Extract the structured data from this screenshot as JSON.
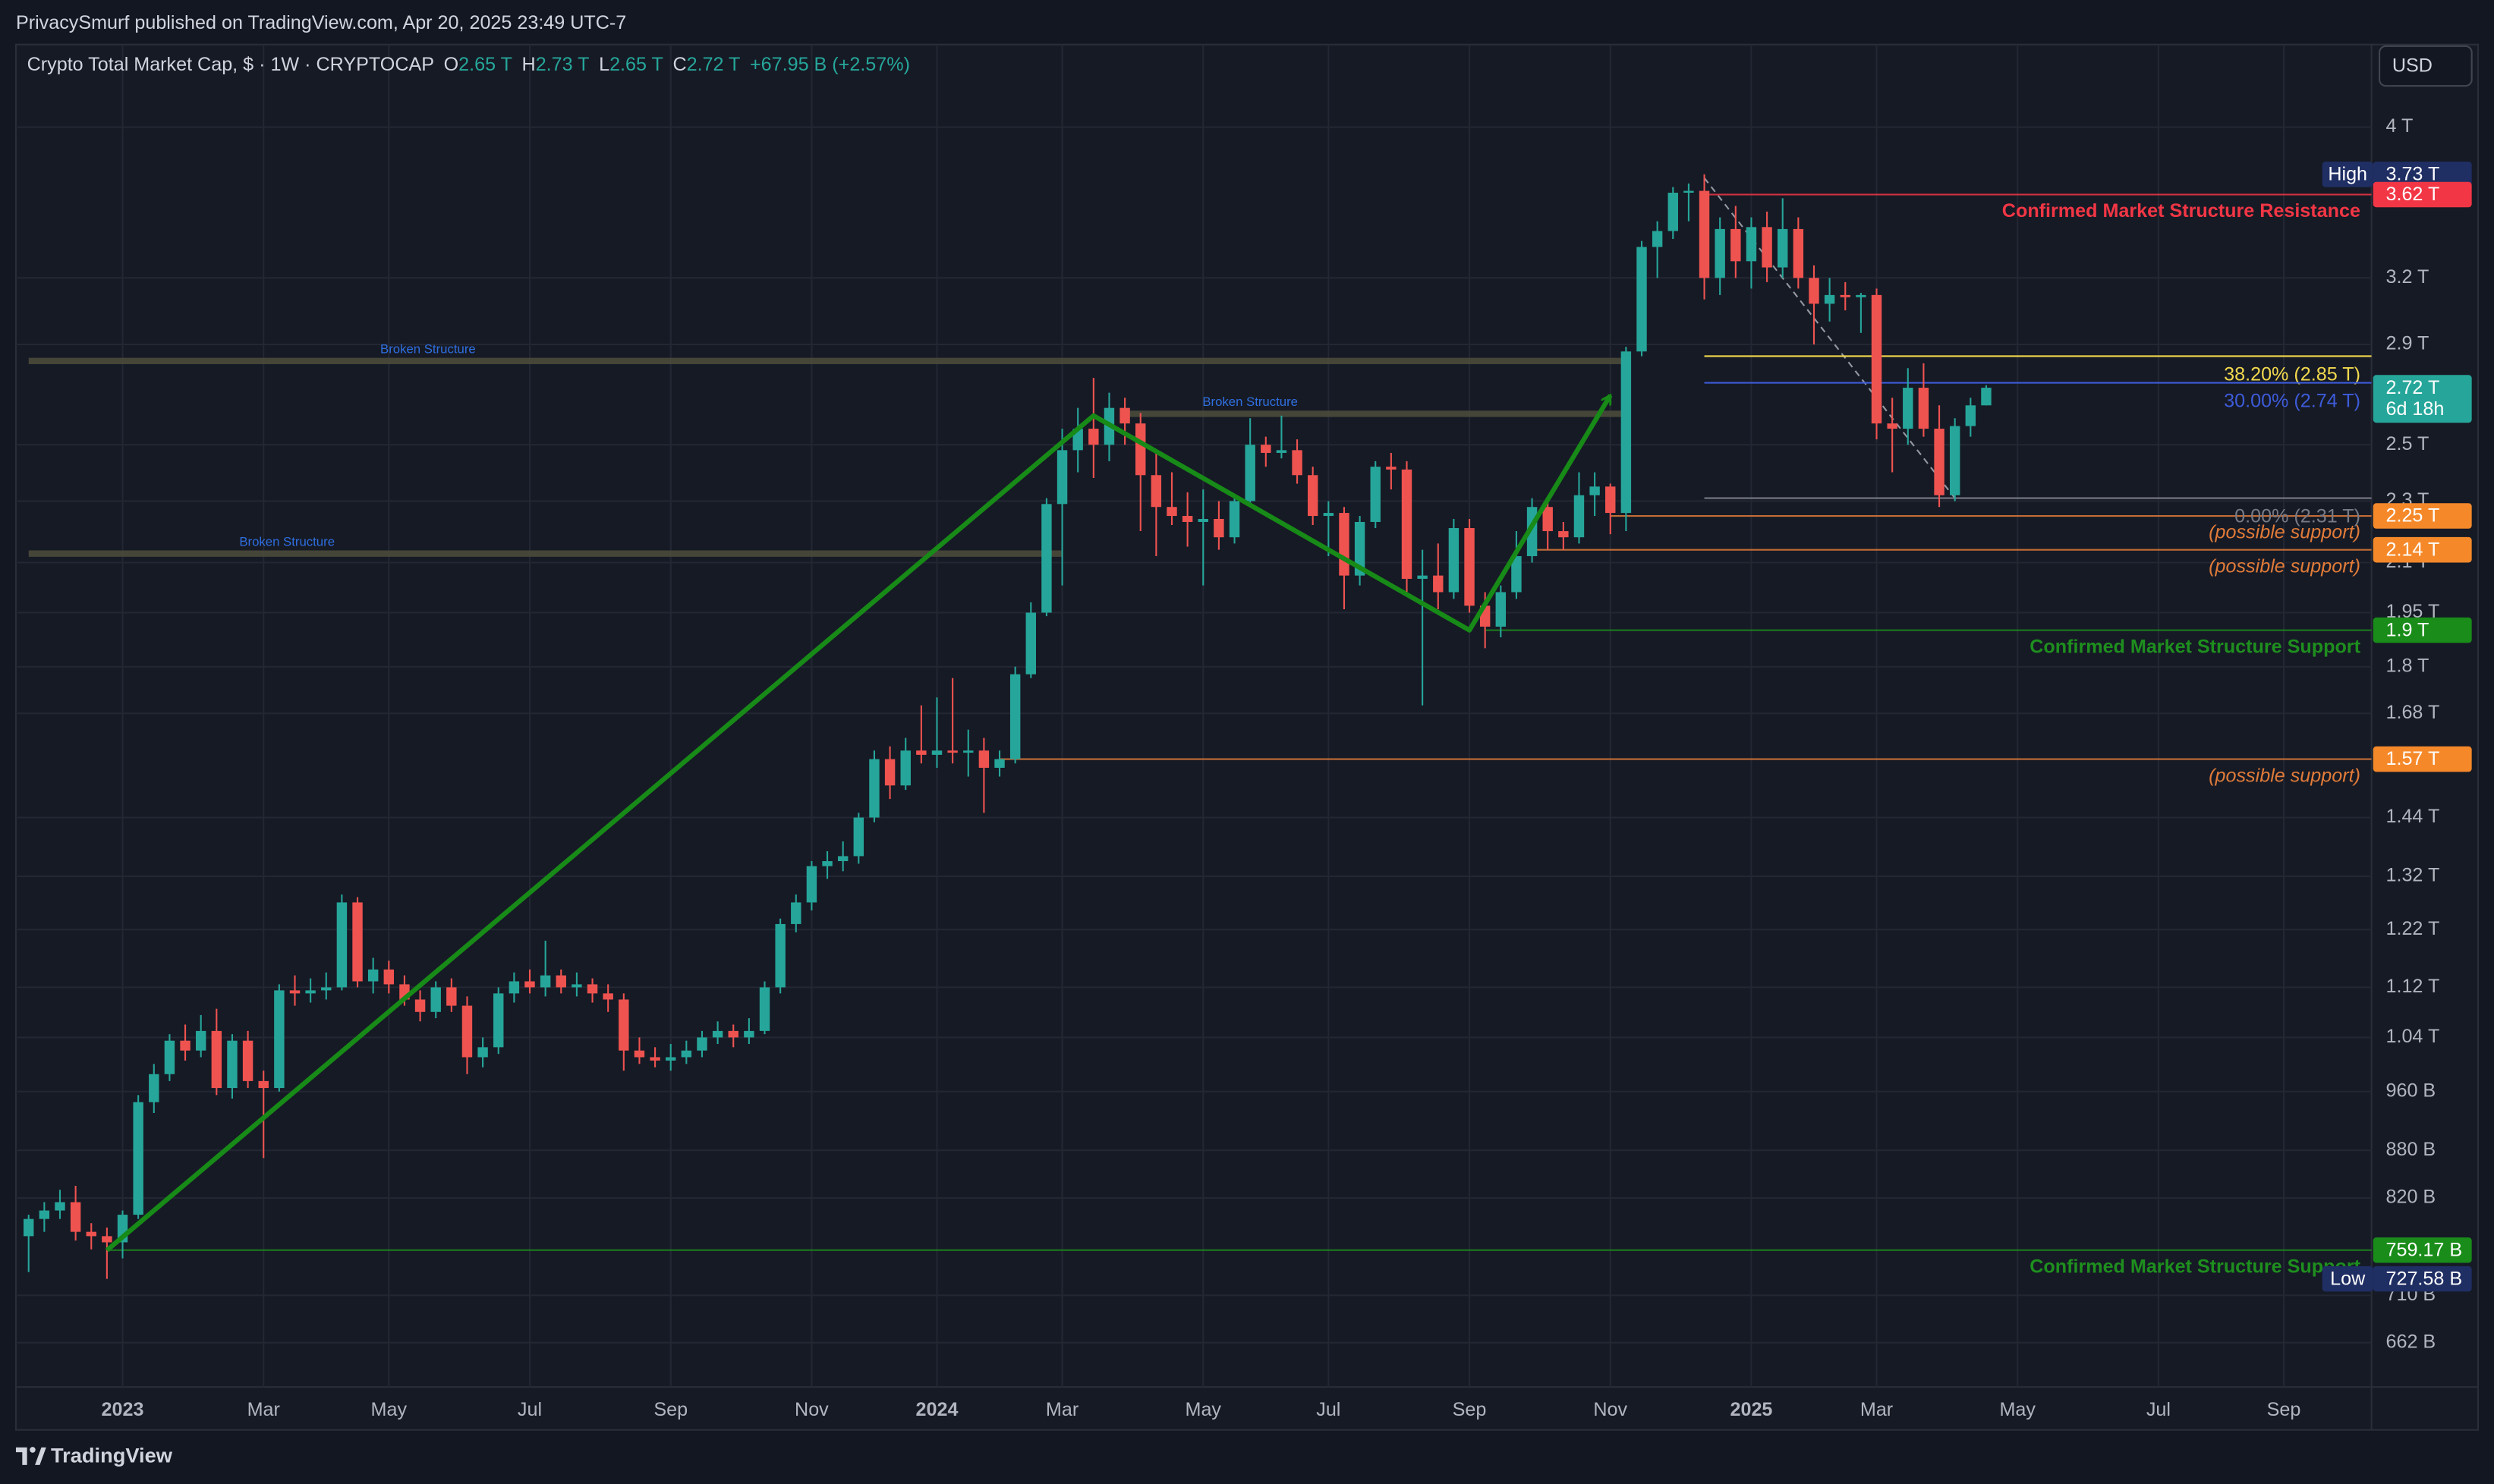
{
  "header": "PrivacySmurf published on TradingView.com, Apr 20, 2025 23:49 UTC-7",
  "footer": "TradingView",
  "currency_button": "USD",
  "chart_data": {
    "type": "candlestick",
    "title": "Crypto Total Market Cap, $ · 1W · CRYPTOCAP",
    "ohlc_legend": [
      {
        "key": "O",
        "value": 2650,
        "label": "2.65 T"
      },
      {
        "key": "H",
        "value": 2730,
        "label": "2.73 T"
      },
      {
        "key": "L",
        "value": 2650,
        "label": "2.65 T"
      },
      {
        "key": "C",
        "value": 2720,
        "label": "2.72 T"
      }
    ],
    "change": {
      "value": 67.95,
      "label": "+67.95 B (+2.57%)"
    },
    "categories": [
      null,
      null,
      null,
      null,
      null,
      null,
      "2023",
      null,
      null,
      null,
      null,
      null,
      null,
      null,
      null,
      "Mar",
      null,
      null,
      null,
      null,
      null,
      null,
      null,
      "May",
      null,
      null,
      null,
      null,
      null,
      null,
      null,
      null,
      "Jul",
      null,
      null,
      null,
      null,
      null,
      null,
      null,
      null,
      "Sep",
      null,
      null,
      null,
      null,
      null,
      null,
      null,
      null,
      "Nov",
      null,
      null,
      null,
      null,
      null,
      null,
      null,
      "2024",
      null,
      null,
      null,
      null,
      null,
      null,
      null,
      "Mar",
      null,
      null,
      null,
      null,
      null,
      null,
      null,
      null,
      "May",
      null,
      null,
      null,
      null,
      null,
      null,
      null,
      "Jul",
      null,
      null,
      null,
      null,
      null,
      null,
      null,
      null,
      "Sep",
      null,
      null,
      null,
      null,
      null,
      null,
      null,
      null,
      "Nov",
      null,
      null,
      null,
      null,
      null,
      null,
      null,
      null,
      "2025",
      null,
      null,
      null,
      null,
      null,
      null,
      null,
      "Mar",
      null,
      null,
      null,
      null,
      null,
      null,
      null,
      null,
      "May",
      null,
      null,
      null,
      null,
      null,
      null,
      null,
      null,
      "Jul",
      null,
      null,
      null,
      null,
      null,
      null,
      null,
      "Sep",
      null,
      null,
      null,
      null,
      null
    ],
    "open": [
      775,
      795,
      805,
      815,
      780,
      775,
      768,
      800,
      945,
      985,
      1035,
      1020,
      1050,
      965,
      1035,
      975,
      965,
      1115,
      1110,
      1115,
      1120,
      1270,
      1130,
      1150,
      1125,
      1100,
      1080,
      1120,
      1090,
      1010,
      1025,
      1110,
      1130,
      1120,
      1140,
      1120,
      1125,
      1110,
      1100,
      1020,
      1010,
      1005,
      1010,
      1020,
      1040,
      1050,
      1040,
      1050,
      1120,
      1230,
      1270,
      1340,
      1350,
      1360,
      1440,
      1570,
      1510,
      1590,
      1580,
      1590,
      1585,
      1590,
      1550,
      1570,
      1780,
      1950,
      2290,
      2480,
      2560,
      2500,
      2640,
      2580,
      2390,
      2280,
      2250,
      2230,
      2240,
      2180,
      2300,
      2500,
      2470,
      2480,
      2390,
      2250,
      2260,
      2060,
      2230,
      2420,
      2410,
      2050,
      2060,
      2010,
      2210,
      1970,
      1910,
      2010,
      2120,
      2280,
      2200,
      2180,
      2320,
      2350,
      2260,
      2870,
      3350,
      3430,
      3630,
      3640,
      3200,
      3440,
      3280,
      3450,
      3250,
      3440,
      3200,
      3080,
      3120,
      3110,
      3120,
      2580,
      2560,
      2720,
      2560,
      2320,
      2570,
      2650,
      null,
      null,
      null,
      null,
      null,
      null,
      null,
      null,
      null,
      null,
      null,
      null,
      null,
      null,
      null,
      null,
      null,
      null,
      null,
      null,
      null,
      null,
      null,
      null
    ],
    "high": [
      800,
      815,
      830,
      835,
      790,
      785,
      805,
      955,
      1000,
      1045,
      1060,
      1075,
      1085,
      1045,
      1050,
      990,
      1125,
      1140,
      1135,
      1145,
      1285,
      1280,
      1170,
      1165,
      1140,
      1115,
      1130,
      1135,
      1105,
      1040,
      1120,
      1145,
      1150,
      1200,
      1150,
      1145,
      1135,
      1125,
      1110,
      1040,
      1025,
      1030,
      1035,
      1050,
      1065,
      1060,
      1070,
      1130,
      1240,
      1285,
      1350,
      1370,
      1390,
      1450,
      1590,
      1600,
      1620,
      1700,
      1720,
      1770,
      1640,
      1620,
      1590,
      1800,
      1980,
      2310,
      2560,
      2640,
      2760,
      2700,
      2680,
      2620,
      2480,
      2400,
      2330,
      2340,
      2300,
      2320,
      2600,
      2530,
      2610,
      2520,
      2420,
      2300,
      2280,
      2250,
      2440,
      2470,
      2440,
      2140,
      2160,
      2240,
      2240,
      2010,
      2030,
      2200,
      2310,
      2300,
      2230,
      2400,
      2400,
      2360,
      2890,
      3380,
      3480,
      3660,
      3680,
      3730,
      3500,
      3560,
      3500,
      3530,
      3600,
      3500,
      3260,
      3200,
      3180,
      3130,
      3150,
      2680,
      2800,
      2820,
      2650,
      2600,
      2680,
      2730,
      null,
      null,
      null,
      null,
      null,
      null,
      null,
      null,
      null,
      null,
      null,
      null,
      null,
      null,
      null,
      null,
      null,
      null,
      null,
      null,
      null,
      null,
      null,
      null
    ],
    "low": [
      735,
      780,
      795,
      770,
      760,
      727.58,
      750,
      795,
      930,
      975,
      1005,
      1010,
      955,
      950,
      965,
      870,
      960,
      1090,
      1095,
      1100,
      1115,
      1120,
      1110,
      1110,
      1090,
      1065,
      1070,
      1080,
      985,
      995,
      1015,
      1095,
      1110,
      1105,
      1110,
      1105,
      1095,
      1080,
      990,
      1000,
      995,
      990,
      1000,
      1010,
      1030,
      1025,
      1030,
      1045,
      1110,
      1215,
      1255,
      1315,
      1330,
      1345,
      1430,
      1480,
      1500,
      1560,
      1550,
      1560,
      1530,
      1450,
      1530,
      1560,
      1770,
      1940,
      2030,
      2400,
      2380,
      2440,
      2500,
      2200,
      2120,
      2220,
      2150,
      2030,
      2140,
      2160,
      2280,
      2420,
      2450,
      2360,
      2220,
      2120,
      1960,
      2030,
      2210,
      2340,
      2000,
      1700,
      1960,
      1990,
      1950,
      1850,
      1880,
      1990,
      2100,
      2140,
      2140,
      2160,
      2250,
      2190,
      2200,
      2850,
      3200,
      3390,
      3480,
      3100,
      3120,
      3200,
      3150,
      3180,
      3200,
      3150,
      2900,
      3000,
      3050,
      2950,
      2520,
      2400,
      2500,
      2530,
      2280,
      2300,
      2530,
      2650,
      null,
      null,
      null,
      null,
      null,
      null,
      null,
      null,
      null,
      null,
      null,
      null,
      null,
      null,
      null,
      null,
      null,
      null,
      null,
      null,
      null,
      null,
      null,
      null
    ],
    "close": [
      795,
      805,
      815,
      780,
      775,
      768,
      800,
      945,
      985,
      1035,
      1020,
      1050,
      965,
      1035,
      975,
      965,
      1115,
      1110,
      1115,
      1120,
      1270,
      1130,
      1150,
      1125,
      1100,
      1080,
      1120,
      1090,
      1010,
      1025,
      1110,
      1130,
      1120,
      1140,
      1120,
      1125,
      1110,
      1100,
      1020,
      1010,
      1005,
      1010,
      1020,
      1040,
      1050,
      1040,
      1050,
      1120,
      1230,
      1270,
      1340,
      1350,
      1360,
      1440,
      1570,
      1510,
      1590,
      1580,
      1590,
      1585,
      1590,
      1550,
      1570,
      1780,
      1950,
      2290,
      2480,
      2560,
      2500,
      2640,
      2580,
      2390,
      2280,
      2250,
      2230,
      2240,
      2180,
      2300,
      2500,
      2470,
      2480,
      2390,
      2250,
      2260,
      2060,
      2230,
      2420,
      2410,
      2050,
      2060,
      2010,
      2210,
      1970,
      1910,
      2010,
      2120,
      2280,
      2200,
      2180,
      2320,
      2350,
      2260,
      2870,
      3350,
      3430,
      3630,
      3640,
      3200,
      3440,
      3280,
      3450,
      3250,
      3440,
      3200,
      3080,
      3120,
      3110,
      3120,
      2580,
      2560,
      2720,
      2560,
      2320,
      2570,
      2650,
      2720,
      null,
      null,
      null,
      null,
      null,
      null,
      null,
      null,
      null,
      null,
      null,
      null,
      null,
      null,
      null,
      null,
      null,
      null,
      null,
      null,
      null,
      null,
      null,
      null
    ],
    "colors": {
      "up": "#26a69a",
      "down": "#ef5350"
    },
    "log_scale": true,
    "grid": true,
    "ylim": [
      620,
      4520
    ],
    "yticks": [
      {
        "value": 4000,
        "label": "4 T"
      },
      {
        "value": 3200,
        "label": "3.2 T"
      },
      {
        "value": 2900,
        "label": "2.9 T"
      },
      {
        "value": 2500,
        "label": "2.5 T"
      },
      {
        "value": 2300,
        "label": "2.3 T"
      },
      {
        "value": 2100,
        "label": "2.1 T"
      },
      {
        "value": 1950,
        "label": "1.95 T"
      },
      {
        "value": 1800,
        "label": "1.8 T"
      },
      {
        "value": 1680,
        "label": "1.68 T"
      },
      {
        "value": 1440,
        "label": "1.44 T"
      },
      {
        "value": 1320,
        "label": "1.32 T"
      },
      {
        "value": 1220,
        "label": "1.22 T"
      },
      {
        "value": 1120,
        "label": "1.12 T"
      },
      {
        "value": 1040,
        "label": "1.04 T"
      },
      {
        "value": 960,
        "label": "960 B"
      },
      {
        "value": 880,
        "label": "880 B"
      },
      {
        "value": 820,
        "label": "820 B"
      },
      {
        "value": 710,
        "label": "710 B"
      },
      {
        "value": 662,
        "label": "662 B"
      }
    ],
    "broken_structure": [
      {
        "text": "Broken Structure",
        "value": 2830,
        "start": 0,
        "end": 102
      },
      {
        "text": "Broken Structure",
        "value": 2128,
        "start": 0,
        "end": 66
      },
      {
        "text": "Broken Structure",
        "value": 2617,
        "start": 70,
        "end": 102
      }
    ],
    "levels": [
      {
        "value": 3620,
        "start": 107,
        "color": "#f23645",
        "text": "Confirmed Market Structure Resistance"
      },
      {
        "value": 2250,
        "start": 101,
        "color": "#e07b39",
        "text": "(possible support)"
      },
      {
        "value": 2140,
        "start": 96,
        "color": "#e07b39",
        "text": "(possible support)"
      },
      {
        "value": 1900,
        "start": 93,
        "color": "#1e8f1e",
        "text": "Confirmed Market Structure Support"
      },
      {
        "value": 1570,
        "start": 62,
        "color": "#e07b39",
        "text": "(possible support)"
      },
      {
        "value": 759.17,
        "start": 5,
        "color": "#1e8f1e",
        "text": "Confirmed Market Structure Support"
      }
    ],
    "fib": {
      "from": {
        "x": 107,
        "y": 3710
      },
      "to": {
        "x": 123,
        "y": 2310
      },
      "start": 107,
      "levels": [
        {
          "value": 2850,
          "label": "38.20% (2.85 T)",
          "color": "#f2d94e"
        },
        {
          "value": 2740,
          "label": "30.00% (2.74 T)",
          "color": "#3d5bd9"
        },
        {
          "value": 2310,
          "label": "0.00% (2.31 T)",
          "color": "#787b86"
        }
      ]
    },
    "trend": {
      "color": "#178a17",
      "points": [
        {
          "x": 5,
          "y": 759
        },
        {
          "x": 68,
          "y": 2610
        },
        {
          "x": 92,
          "y": 1900
        },
        {
          "x": 101,
          "y": 2690
        }
      ]
    },
    "price_tags": [
      {
        "value": 3730,
        "label": "3.73 T",
        "tag": "High",
        "color": "#1f2e63"
      },
      {
        "value": 3620,
        "label": "3.62 T",
        "color": "#f23645"
      },
      {
        "value": 2720,
        "label": "2.72 T",
        "sub": "6d 18h",
        "color": "#26a69a"
      },
      {
        "value": 2250,
        "label": "2.25 T",
        "color": "#f5892a"
      },
      {
        "value": 2140,
        "label": "2.14 T",
        "color": "#f5892a"
      },
      {
        "value": 1900,
        "label": "1.9 T",
        "color": "#198c19"
      },
      {
        "value": 1570,
        "label": "1.57 T",
        "color": "#f5892a"
      },
      {
        "value": 759.17,
        "label": "759.17 B",
        "color": "#198c19"
      },
      {
        "value": 727.58,
        "label": "727.58 B",
        "tag": "Low",
        "color": "#1f2e63"
      }
    ]
  }
}
